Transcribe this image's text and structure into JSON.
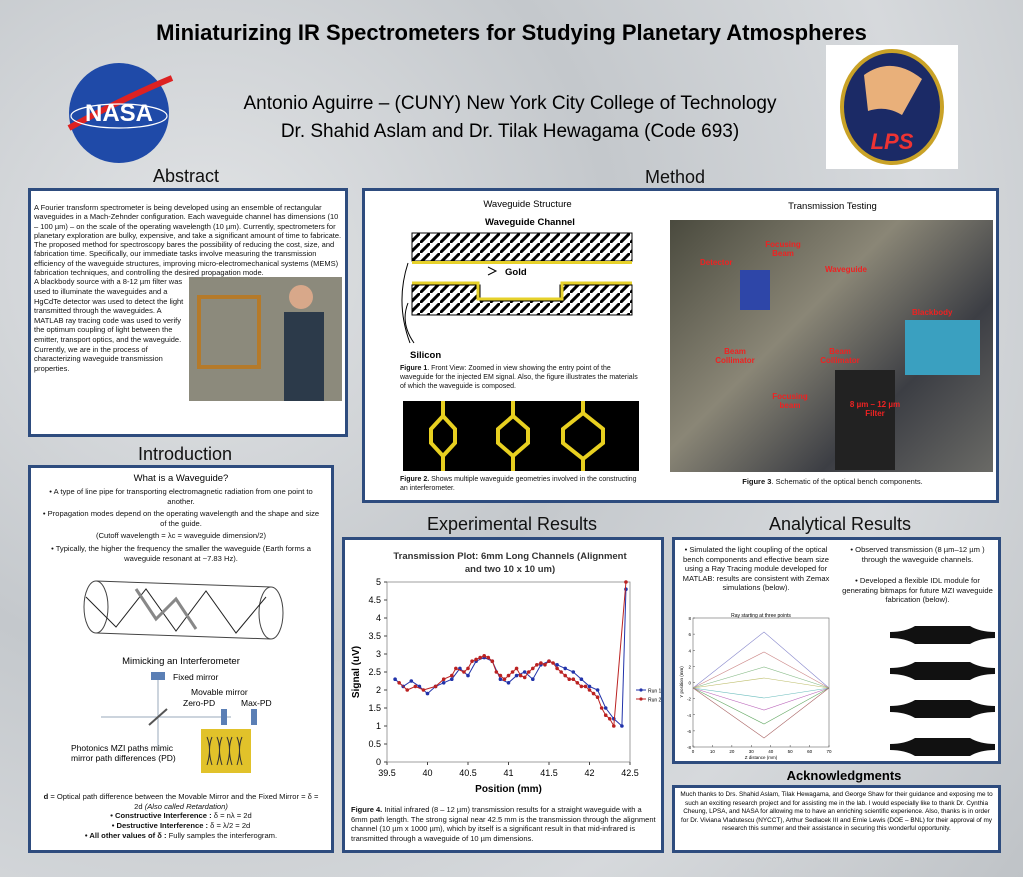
{
  "header": {
    "title": "Miniaturizing IR Spectrometers for Studying Planetary Atmospheres",
    "authors": "Antonio Aguirre – (CUNY) New York City College of Technology",
    "advisors": "Dr. Shahid Aslam and Dr. Tilak Hewagama (Code 693)",
    "logo_left": "NASA",
    "logo_right": "LPS"
  },
  "abstract": {
    "heading": "Abstract",
    "paragraph_1": "A Fourier transform spectrometer is being developed using an ensemble of rectangular waveguides in a Mach-Zehnder configuration. Each waveguide channel has dimensions (10 – 100 µm) – on the scale of the operating wavelength (10 µm). Currently, spectrometers for planetary exploration are bulky, expensive, and take a significant amount of time to fabricate. The proposed method for spectroscopy bares the possibility of reducing the cost, size, and fabrication time. Specifically, our immediate tasks involve measuring the transmission efficiency of the waveguide structures, improving micro-electromechanical  systems (MEMS) fabrication techniques,  and controlling the desired propagation mode.",
    "paragraph_2": "A blackbody source with a 8-12 µm filter was used to illuminate the waveguides and a HgCdTe detector was used to detect the light transmitted through the waveguides. A MATLAB ray tracing code was used to verify the optimum coupling of light between the emitter, transport optics, and the waveguide.  Currently, we are in the process of characterizing waveguide transmission properties."
  },
  "introduction": {
    "heading": "Introduction",
    "subheading": "What is a Waveguide?",
    "bullets": [
      "• A type of line pipe for transporting electromagnetic radiation from one point to another.",
      "• Propagation modes depend on the operating wavelength and the shape and size of the guide.",
      "(Cutoff wavelength = λc = waveguide dimension/2)",
      "• Typically, the higher the frequency the smaller the waveguide (Earth forms a waveguide resonant at ~7.83 Hz)."
    ],
    "interferometer_heading": "Mimicking an Interferometer",
    "diagram_labels": [
      "Fixed mirror",
      "Movable mirror",
      "Zero-PD",
      "Max-PD",
      "Photonics MZI paths mimic mirror path differences (PD)"
    ],
    "notes": [
      {
        "term": "d",
        "text": " = Optical path difference between the Movable Mirror and the Fixed Mirror = δ = 2d ",
        "italic": "(Also called Retardation)"
      },
      {
        "term": "• Constructive Interference : ",
        "text": "δ = nλ = 2d"
      },
      {
        "term": "• Destructive Interference : ",
        "text": "δ = λ/2 = 2d"
      },
      {
        "term": "• All other values of δ : ",
        "text": "Fully samples the interferogram."
      }
    ]
  },
  "method": {
    "heading": "Method",
    "waveguide_structure": {
      "title": "Waveguide Structure",
      "channel_label": "Waveguide Channel",
      "gold": "Gold",
      "silicon": "Silicon",
      "figure_1_label": "Figure 1",
      "figure_1_text": ". Front View: Zoomed in view showing the entry point of the waveguide for the injected EM signal. Also, the figure illustrates the materials of which the waveguide is composed.",
      "figure_2_label": "Figure 2.",
      "figure_2_text": " Shows multiple waveguide geometries involved in the constructing an interferometer."
    },
    "transmission_testing": {
      "title": "Transmission Testing",
      "labels": [
        "Focusing Beam",
        "Detector",
        "Waveguide",
        "Blackbody",
        "Beam Collimator",
        "Beam Collimator",
        "Focusing beam",
        "8 µm – 12 µm Filter"
      ],
      "figure_3_label": "Figure 3",
      "figure_3_text": ". Schematic  of the optical bench components."
    }
  },
  "experimental_results": {
    "heading": "Experimental Results",
    "chart": {
      "type": "line",
      "title": "Transmission Plot: 6mm Long Channels (Alignment and two 10 x 10 um)",
      "x_label": "Position (mm)",
      "y_label": "Signal (uV)",
      "xlim": [
        39.5,
        42.5
      ],
      "xticks": [
        39.5,
        40,
        40.5,
        41,
        41.5,
        42,
        42.5
      ],
      "ylim": [
        0,
        5
      ],
      "yticks": [
        0,
        0.5,
        1,
        1.5,
        2,
        2.5,
        3,
        3.5,
        4,
        4.5,
        5
      ],
      "series": [
        {
          "name": "Run 1",
          "color": "#2233aa",
          "x": [
            39.6,
            39.7,
            39.8,
            39.9,
            40.0,
            40.1,
            40.2,
            40.3,
            40.4,
            40.5,
            40.6,
            40.7,
            40.8,
            40.9,
            41.0,
            41.1,
            41.2,
            41.3,
            41.4,
            41.5,
            41.6,
            41.7,
            41.8,
            41.9,
            42.0,
            42.1,
            42.2,
            42.3,
            42.4,
            42.45
          ],
          "values": [
            2.3,
            2.1,
            2.25,
            2.1,
            1.9,
            2.1,
            2.2,
            2.3,
            2.6,
            2.4,
            2.8,
            2.9,
            2.8,
            2.3,
            2.2,
            2.4,
            2.5,
            2.3,
            2.7,
            2.8,
            2.7,
            2.6,
            2.5,
            2.3,
            2.1,
            2.0,
            1.5,
            1.2,
            1.0,
            4.8
          ]
        },
        {
          "name": "Run 2",
          "color": "#bb2222",
          "x": [
            39.65,
            39.75,
            39.85,
            39.95,
            40.1,
            40.2,
            40.3,
            40.35,
            40.45,
            40.5,
            40.55,
            40.6,
            40.65,
            40.7,
            40.75,
            40.8,
            40.85,
            40.9,
            40.95,
            41.0,
            41.05,
            41.1,
            41.15,
            41.2,
            41.25,
            41.3,
            41.35,
            41.4,
            41.45,
            41.5,
            41.55,
            41.6,
            41.65,
            41.7,
            41.75,
            41.8,
            41.85,
            41.9,
            41.95,
            42.0,
            42.05,
            42.1,
            42.15,
            42.2,
            42.25,
            42.3,
            42.45
          ],
          "values": [
            2.2,
            2.0,
            2.1,
            2.0,
            2.1,
            2.3,
            2.4,
            2.6,
            2.5,
            2.6,
            2.8,
            2.85,
            2.9,
            2.95,
            2.9,
            2.8,
            2.5,
            2.4,
            2.3,
            2.4,
            2.5,
            2.6,
            2.4,
            2.35,
            2.5,
            2.6,
            2.7,
            2.75,
            2.7,
            2.8,
            2.75,
            2.6,
            2.5,
            2.4,
            2.3,
            2.3,
            2.2,
            2.1,
            2.1,
            2.0,
            1.9,
            1.8,
            1.5,
            1.3,
            1.2,
            1.0,
            5.0
          ]
        }
      ]
    },
    "figure_4_label": "Figure 4.",
    "figure_4_text": " Initial infrared (8 – 12 µm) transmission results for a straight waveguide with a 6mm path length. The strong signal near 42.5 mm is the transmission through the alignment channel (10 µm x 1000 µm), which by itself is a significant result in that mid-infrared is transmitted through a waveguide of 10 µm dimensions."
  },
  "analytical_results": {
    "heading": "Analytical Results",
    "bullets_left": [
      "• Simulated the light coupling of the optical bench components and effective beam size using a Ray Tracing module developed for MATLAB:  results are consistent with Zemax simulations (below)."
    ],
    "bullets_right": [
      "• Observed transmission (8 µm–12 µm ) through the waveguide channels.",
      "• Developed a flexible IDL module for generating bitmaps for future MZI waveguide fabrication (below)."
    ],
    "ray_plot": {
      "title": "Ray starting at three points",
      "x_label": "Z distance (mm)",
      "y_label": "Y position (mm)",
      "xlim": [
        0,
        70
      ],
      "xticks": [
        0,
        10,
        20,
        30,
        40,
        50,
        60,
        70
      ],
      "ylim": [
        -8,
        8
      ],
      "yticks": [
        -8,
        -6,
        -4,
        -2,
        0,
        2,
        4,
        6,
        8
      ]
    }
  },
  "acknowledgments": {
    "heading": "Acknowledgments",
    "text": "Much thanks to Drs. Shahid Aslam, Tilak Hewagama, and  George Shaw for their guidance and exposing me to such an exciting research project and for assisting me in the lab. I would especially like to thank Dr. Cynthia Cheung, LPSA, and NASA for allowing me to have an enriching scientific experience.  Also, thanks is in order for Dr. Viviana Vladutescu (NYCCT), Arthur Sedlacek III and Ernie Lewis (DOE – BNL) for their approval of my research this summer and their assistance in securing this wonderful opportunity."
  }
}
